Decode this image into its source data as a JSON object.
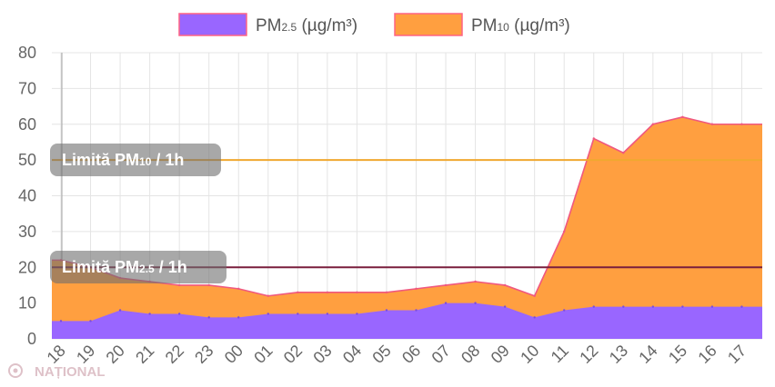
{
  "chart_data": {
    "type": "area",
    "ylim": [
      0,
      80
    ],
    "y_ticks": [
      0,
      10,
      20,
      30,
      40,
      50,
      60,
      70,
      80
    ],
    "grid": true,
    "legend_position": "top-center",
    "x_tick_labels": [
      "18",
      "19",
      "20",
      "21",
      "22",
      "23",
      "00",
      "01",
      "02",
      "03",
      "04",
      "05",
      "06",
      "07",
      "08",
      "09",
      "10",
      "11",
      "12",
      "13",
      "14",
      "15",
      "16",
      "17"
    ],
    "series": [
      {
        "name": "PM2.5 (µg/m³)",
        "color": "#9966ff",
        "x": [
          "18",
          "19",
          "20",
          "21",
          "22",
          "23",
          "00",
          "01",
          "02",
          "03",
          "04",
          "05",
          "06",
          "07",
          "08",
          "09",
          "10",
          "11",
          "12",
          "13",
          "14",
          "15",
          "16",
          "17"
        ],
        "values": [
          5,
          5,
          8,
          7,
          7,
          6,
          6,
          7,
          7,
          7,
          7,
          8,
          8,
          10,
          10,
          9,
          6,
          8,
          9,
          9,
          9,
          9,
          9,
          9
        ]
      },
      {
        "name": "PM10 (µg/m³)",
        "color": "#ff9f40",
        "x": [
          "18",
          "19",
          "20",
          "21",
          "22",
          "23",
          "00",
          "01",
          "02",
          "03",
          "04",
          "05",
          "06",
          "07",
          "08",
          "09",
          "10",
          "11",
          "12",
          "13",
          "14",
          "15",
          "16",
          "17"
        ],
        "values": [
          22,
          20,
          17,
          16,
          15,
          15,
          14,
          12,
          13,
          13,
          13,
          13,
          14,
          15,
          16,
          15,
          12,
          30,
          56,
          52,
          60,
          62,
          60,
          60
        ]
      }
    ],
    "limit_lines": [
      {
        "label": "Limită PM10 / 1h",
        "value": 50,
        "color": "#f0a830"
      },
      {
        "label": "Limită PM2.5 / 1h",
        "value": 20,
        "color": "#7a1f3d"
      }
    ]
  },
  "legend": {
    "pm25_main": "PM",
    "pm25_sub": "2.5",
    "pm25_unit": " (µg/m³)",
    "pm10_main": "PM",
    "pm10_sub": "10",
    "pm10_unit": " (µg/m³)"
  },
  "limits": {
    "pm10_main": "Limită PM",
    "pm10_sub": "10",
    "pm10_suffix": " / 1h",
    "pm25_main": "Limită PM",
    "pm25_sub": "2.5",
    "pm25_suffix": " / 1h"
  },
  "watermark": {
    "text": "NAȚIONAL"
  }
}
